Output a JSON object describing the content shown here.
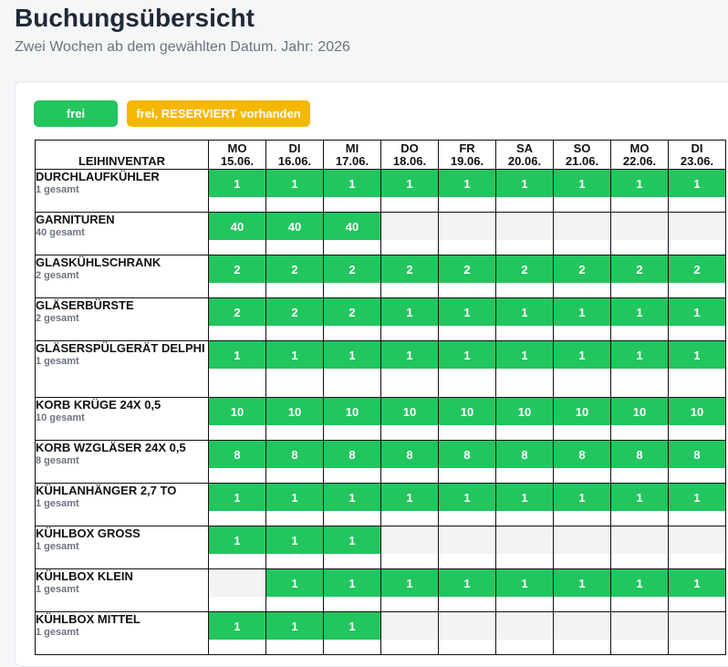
{
  "header": {
    "title": "Buchungsübersicht",
    "subtitle": "Zwei Wochen ab dem gewählten Datum. Jahr: 2026"
  },
  "legend": {
    "free_label": "frei",
    "reserved_label": "frei, RESERVIERT vorhanden",
    "free_color": "#22c55e",
    "reserved_color": "#f5b800"
  },
  "table": {
    "item_header": "LEIHINVENTAR",
    "days": [
      {
        "weekday": "MO",
        "date": "15.06."
      },
      {
        "weekday": "DI",
        "date": "16.06."
      },
      {
        "weekday": "MI",
        "date": "17.06."
      },
      {
        "weekday": "DO",
        "date": "18.06."
      },
      {
        "weekday": "FR",
        "date": "19.06."
      },
      {
        "weekday": "SA",
        "date": "20.06."
      },
      {
        "weekday": "SO",
        "date": "21.06."
      },
      {
        "weekday": "MO",
        "date": "22.06."
      },
      {
        "weekday": "DI",
        "date": "23.06."
      }
    ],
    "rows": [
      {
        "name": "DURCHLAUFKÜHLER",
        "total": "1 gesamt",
        "height": 47,
        "cells": [
          "1",
          "1",
          "1",
          "1",
          "1",
          "1",
          "1",
          "1",
          "1"
        ]
      },
      {
        "name": "GARNITUREN",
        "total": "40 gesamt",
        "height": 47,
        "cells": [
          "40",
          "40",
          "40",
          "",
          "",
          "",
          "",
          "",
          ""
        ]
      },
      {
        "name": "GLASKÜHLSCHRANK",
        "total": "2 gesamt",
        "height": 47,
        "cells": [
          "2",
          "2",
          "2",
          "2",
          "2",
          "2",
          "2",
          "2",
          "2"
        ]
      },
      {
        "name": "GLÄSERBÜRSTE",
        "total": "2 gesamt",
        "height": 47,
        "cells": [
          "2",
          "2",
          "2",
          "1",
          "1",
          "1",
          "1",
          "1",
          "1"
        ]
      },
      {
        "name": "GLÄSERSPÜLGERÄT DELPHI",
        "total": "1 gesamt",
        "height": 62,
        "cells": [
          "1",
          "1",
          "1",
          "1",
          "1",
          "1",
          "1",
          "1",
          "1"
        ]
      },
      {
        "name": "KORB KRÜGE 24X 0,5",
        "total": "10 gesamt",
        "height": 47,
        "cells": [
          "10",
          "10",
          "10",
          "10",
          "10",
          "10",
          "10",
          "10",
          "10"
        ]
      },
      {
        "name": "KORB WZGLÄSER 24X 0,5",
        "total": "8 gesamt",
        "height": 47,
        "cells": [
          "8",
          "8",
          "8",
          "8",
          "8",
          "8",
          "8",
          "8",
          "8"
        ]
      },
      {
        "name": "KÜHLANHÄNGER 2,7 TO",
        "total": "1 gesamt",
        "height": 47,
        "cells": [
          "1",
          "1",
          "1",
          "1",
          "1",
          "1",
          "1",
          "1",
          "1"
        ]
      },
      {
        "name": "KÜHLBOX GROSS",
        "total": "1 gesamt",
        "height": 47,
        "cells": [
          "1",
          "1",
          "1",
          "",
          "",
          "",
          "",
          "",
          ""
        ]
      },
      {
        "name": "KÜHLBOX KLEIN",
        "total": "1 gesamt",
        "height": 47,
        "cells": [
          "",
          "1",
          "1",
          "1",
          "1",
          "1",
          "1",
          "1",
          "1"
        ]
      },
      {
        "name": "KÜHLBOX MITTEL",
        "total": "1 gesamt",
        "height": 47,
        "cells": [
          "1",
          "1",
          "1",
          "",
          "",
          "",
          "",
          "",
          ""
        ]
      }
    ]
  }
}
